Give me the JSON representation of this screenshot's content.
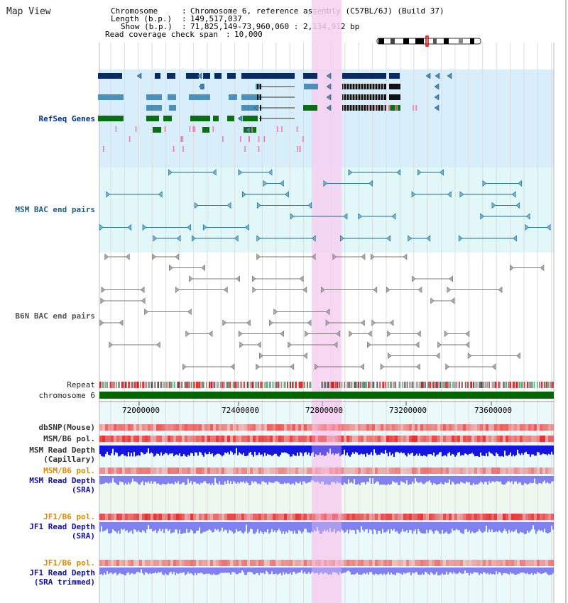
{
  "page": {
    "title": "Map View"
  },
  "info": {
    "chromosome_label": "Chromosome",
    "chromosome_value": "Chromosome 6, reference assembly (C57BL/6J) (Build 37)",
    "length_label": "Length (b.p.)",
    "length_value": "149,517,037",
    "show_label": "Show (b.p.)",
    "show_value": "71,825,149-73,960,060 : 2,134,912 bp",
    "coverage_label": "Read coverage check span",
    "coverage_value": "10,000"
  },
  "tracks": {
    "refseq": "RefSeq Genes",
    "msm_bac": "MSM BAC end pairs",
    "b6n_bac": "B6N BAC end pairs",
    "repeat": "Repeat",
    "chromosome": "chromosome 6",
    "dbsnp": "dbSNP(Mouse)",
    "msm_b6_pol": "MSM/B6 pol.",
    "msm_read_depth_cap": "MSM Read Depth\n(Capillary)",
    "msm_b6_pol_2": "MSM/B6 pol.",
    "msm_read_depth_sra": "MSM Read Depth\n(SRA)",
    "jf1_b6_pol": "JF1/B6 pol.",
    "jf1_read_depth_sra": "JF1 Read Depth\n(SRA)",
    "jf1_b6_pol_2": "JF1/B6 pol.",
    "jf1_read_depth_trim": "JF1 Read Depth\n(SRA trimmed)"
  },
  "axis": {
    "ticks": [
      "72000000",
      "72400000",
      "72800000",
      "73200000",
      "73600000"
    ]
  },
  "colors": {
    "highlight": "#f6d0f0",
    "refseq_bg": "#d8eefa",
    "gene_dark": "#0a2a66",
    "gene_mid": "#4a90b8",
    "gene_green": "#0a6e14",
    "msm_bg": "#e2f8f8",
    "bac_teal": "#1f6f90",
    "bac_gray": "#777777",
    "chrom_green": "#006600",
    "snp_red": "#ee5555",
    "depth_blue": "#1515e0",
    "depth_light": "#8080f0"
  }
}
